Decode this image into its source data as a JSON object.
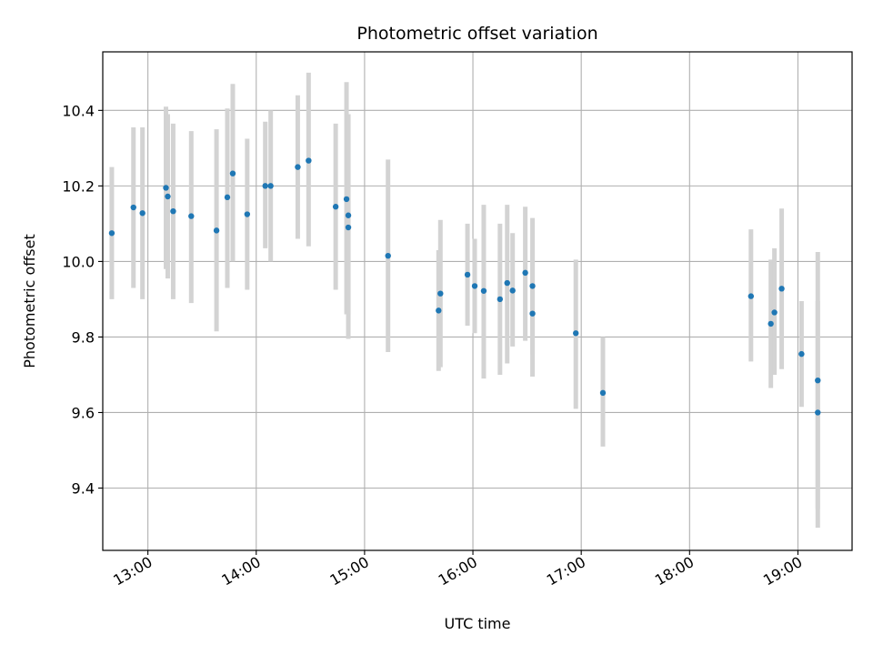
{
  "chart_data": {
    "type": "scatter",
    "title": "Photometric offset variation",
    "xlabel": "UTC time",
    "ylabel": "Photometric offset",
    "grid": true,
    "x_axis_kind": "time",
    "xlim": [
      "12:35",
      "19:30"
    ],
    "ylim": [
      9.235,
      10.555
    ],
    "x_ticks": [
      "13:00",
      "14:00",
      "15:00",
      "16:00",
      "17:00",
      "18:00",
      "19:00"
    ],
    "y_ticks": [
      9.4,
      9.6,
      9.8,
      10.0,
      10.2,
      10.4
    ],
    "y_tick_labels": [
      "9.4",
      "9.6",
      "9.8",
      "10.0",
      "10.2",
      "10.4"
    ],
    "colors": {
      "points": "#1f77b4",
      "errorbars": "#d3d3d3",
      "grid": "#b0b0b0"
    },
    "series": [
      {
        "points": [
          {
            "x": "12:40",
            "y": 10.075,
            "yerr_low": 9.9,
            "yerr_high": 10.25
          },
          {
            "x": "12:52",
            "y": 10.143,
            "yerr_low": 9.93,
            "yerr_high": 10.355
          },
          {
            "x": "12:57",
            "y": 10.128,
            "yerr_low": 9.9,
            "yerr_high": 10.355
          },
          {
            "x": "13:10",
            "y": 10.195,
            "yerr_low": 9.98,
            "yerr_high": 10.41
          },
          {
            "x": "13:11",
            "y": 10.172,
            "yerr_low": 9.955,
            "yerr_high": 10.39
          },
          {
            "x": "13:14",
            "y": 10.133,
            "yerr_low": 9.9,
            "yerr_high": 10.365
          },
          {
            "x": "13:24",
            "y": 10.12,
            "yerr_low": 9.89,
            "yerr_high": 10.345
          },
          {
            "x": "13:38",
            "y": 10.082,
            "yerr_low": 9.815,
            "yerr_high": 10.35
          },
          {
            "x": "13:44",
            "y": 10.17,
            "yerr_low": 9.93,
            "yerr_high": 10.405
          },
          {
            "x": "13:47",
            "y": 10.233,
            "yerr_low": 10.0,
            "yerr_high": 10.47
          },
          {
            "x": "13:55",
            "y": 10.125,
            "yerr_low": 9.925,
            "yerr_high": 10.325
          },
          {
            "x": "14:05",
            "y": 10.2,
            "yerr_low": 10.035,
            "yerr_high": 10.37
          },
          {
            "x": "14:08",
            "y": 10.2,
            "yerr_low": 10.0,
            "yerr_high": 10.4
          },
          {
            "x": "14:23",
            "y": 10.25,
            "yerr_low": 10.06,
            "yerr_high": 10.44
          },
          {
            "x": "14:29",
            "y": 10.267,
            "yerr_low": 10.04,
            "yerr_high": 10.5
          },
          {
            "x": "14:44",
            "y": 10.145,
            "yerr_low": 9.925,
            "yerr_high": 10.365
          },
          {
            "x": "14:50",
            "y": 10.165,
            "yerr_low": 9.86,
            "yerr_high": 10.475
          },
          {
            "x": "14:51",
            "y": 10.122,
            "yerr_low": 9.86,
            "yerr_high": 10.39
          },
          {
            "x": "14:51",
            "y": 10.09,
            "yerr_low": 9.795,
            "yerr_high": 10.39
          },
          {
            "x": "15:13",
            "y": 10.015,
            "yerr_low": 9.76,
            "yerr_high": 10.27
          },
          {
            "x": "15:41",
            "y": 9.87,
            "yerr_low": 9.71,
            "yerr_high": 10.03
          },
          {
            "x": "15:42",
            "y": 9.915,
            "yerr_low": 9.72,
            "yerr_high": 10.11
          },
          {
            "x": "15:57",
            "y": 9.965,
            "yerr_low": 9.83,
            "yerr_high": 10.1
          },
          {
            "x": "16:01",
            "y": 9.935,
            "yerr_low": 9.81,
            "yerr_high": 10.06
          },
          {
            "x": "16:06",
            "y": 9.922,
            "yerr_low": 9.69,
            "yerr_high": 10.15
          },
          {
            "x": "16:15",
            "y": 9.9,
            "yerr_low": 9.7,
            "yerr_high": 10.1
          },
          {
            "x": "16:19",
            "y": 9.943,
            "yerr_low": 9.73,
            "yerr_high": 10.15
          },
          {
            "x": "16:22",
            "y": 9.923,
            "yerr_low": 9.775,
            "yerr_high": 10.075
          },
          {
            "x": "16:29",
            "y": 9.97,
            "yerr_low": 9.79,
            "yerr_high": 10.145
          },
          {
            "x": "16:33",
            "y": 9.935,
            "yerr_low": 9.755,
            "yerr_high": 10.115
          },
          {
            "x": "16:33",
            "y": 9.862,
            "yerr_low": 9.695,
            "yerr_high": 10.03
          },
          {
            "x": "16:57",
            "y": 9.81,
            "yerr_low": 9.61,
            "yerr_high": 10.005
          },
          {
            "x": "17:12",
            "y": 9.652,
            "yerr_low": 9.51,
            "yerr_high": 9.8
          },
          {
            "x": "18:34",
            "y": 9.908,
            "yerr_low": 9.735,
            "yerr_high": 10.085
          },
          {
            "x": "18:45",
            "y": 9.835,
            "yerr_low": 9.665,
            "yerr_high": 10.005
          },
          {
            "x": "18:47",
            "y": 9.865,
            "yerr_low": 9.7,
            "yerr_high": 10.035
          },
          {
            "x": "18:51",
            "y": 9.928,
            "yerr_low": 9.715,
            "yerr_high": 10.14
          },
          {
            "x": "19:02",
            "y": 9.755,
            "yerr_low": 9.615,
            "yerr_high": 9.895
          },
          {
            "x": "19:11",
            "y": 9.685,
            "yerr_low": 9.345,
            "yerr_high": 10.025
          },
          {
            "x": "19:11",
            "y": 9.6,
            "yerr_low": 9.295,
            "yerr_high": 9.895
          }
        ]
      }
    ]
  }
}
